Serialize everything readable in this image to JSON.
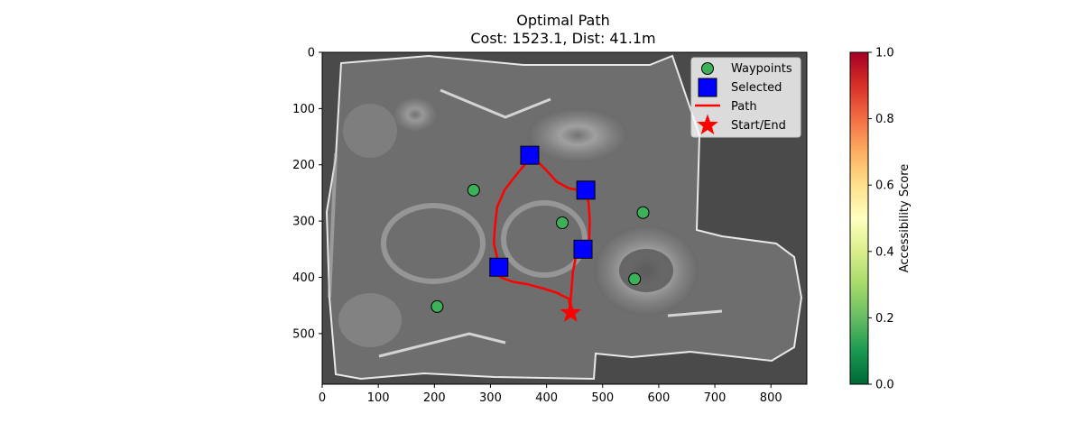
{
  "chart_data": {
    "type": "scatter",
    "title": "Optimal Path",
    "subtitle": "Cost: 1523.1, Dist: 41.1m",
    "xlabel": "",
    "ylabel": "",
    "xlim": [
      0,
      864
    ],
    "ylim": [
      590,
      0
    ],
    "x_ticks": [
      0,
      100,
      200,
      300,
      400,
      500,
      600,
      700,
      800
    ],
    "y_ticks": [
      0,
      100,
      200,
      300,
      400,
      500
    ],
    "grid": false,
    "legend_position": "top-right",
    "colors": {
      "waypoints": "#3cb15a",
      "selected": "#0000ff",
      "path": "#ff0000",
      "start_end": "#ff0000",
      "background": "#4a4a4a"
    },
    "series": [
      {
        "name": "Waypoints",
        "marker": "circle",
        "points": [
          [
            270,
            245
          ],
          [
            428,
            303
          ],
          [
            572,
            285
          ],
          [
            557,
            403
          ],
          [
            205,
            452
          ]
        ]
      },
      {
        "name": "Selected",
        "marker": "square",
        "points": [
          [
            370,
            183
          ],
          [
            470,
            245
          ],
          [
            465,
            350
          ],
          [
            315,
            382
          ]
        ]
      },
      {
        "name": "Path",
        "marker": "line",
        "points": [
          [
            443,
            463
          ],
          [
            440,
            438
          ],
          [
            427,
            432
          ],
          [
            420,
            428
          ],
          [
            395,
            420
          ],
          [
            365,
            412
          ],
          [
            340,
            408
          ],
          [
            318,
            400
          ],
          [
            310,
            390
          ],
          [
            312,
            365
          ],
          [
            306,
            340
          ],
          [
            308,
            310
          ],
          [
            312,
            275
          ],
          [
            325,
            245
          ],
          [
            338,
            228
          ],
          [
            350,
            213
          ],
          [
            365,
            195
          ],
          [
            370,
            182
          ],
          [
            380,
            190
          ],
          [
            400,
            210
          ],
          [
            418,
            230
          ],
          [
            440,
            242
          ],
          [
            458,
            245
          ],
          [
            470,
            245
          ],
          [
            475,
            268
          ],
          [
            477,
            300
          ],
          [
            476,
            335
          ],
          [
            465,
            350
          ],
          [
            452,
            365
          ],
          [
            447,
            390
          ],
          [
            445,
            415
          ],
          [
            443,
            440
          ],
          [
            443,
            463
          ]
        ]
      },
      {
        "name": "Start/End",
        "marker": "star",
        "points": [
          [
            443,
            463
          ]
        ]
      }
    ],
    "colorbar": {
      "label": "Accessibility Score",
      "range": [
        0.0,
        1.0
      ],
      "ticks": [
        "0.0",
        "0.2",
        "0.4",
        "0.6",
        "0.8",
        "1.0"
      ],
      "colormap": "RdYlGn_r"
    }
  }
}
